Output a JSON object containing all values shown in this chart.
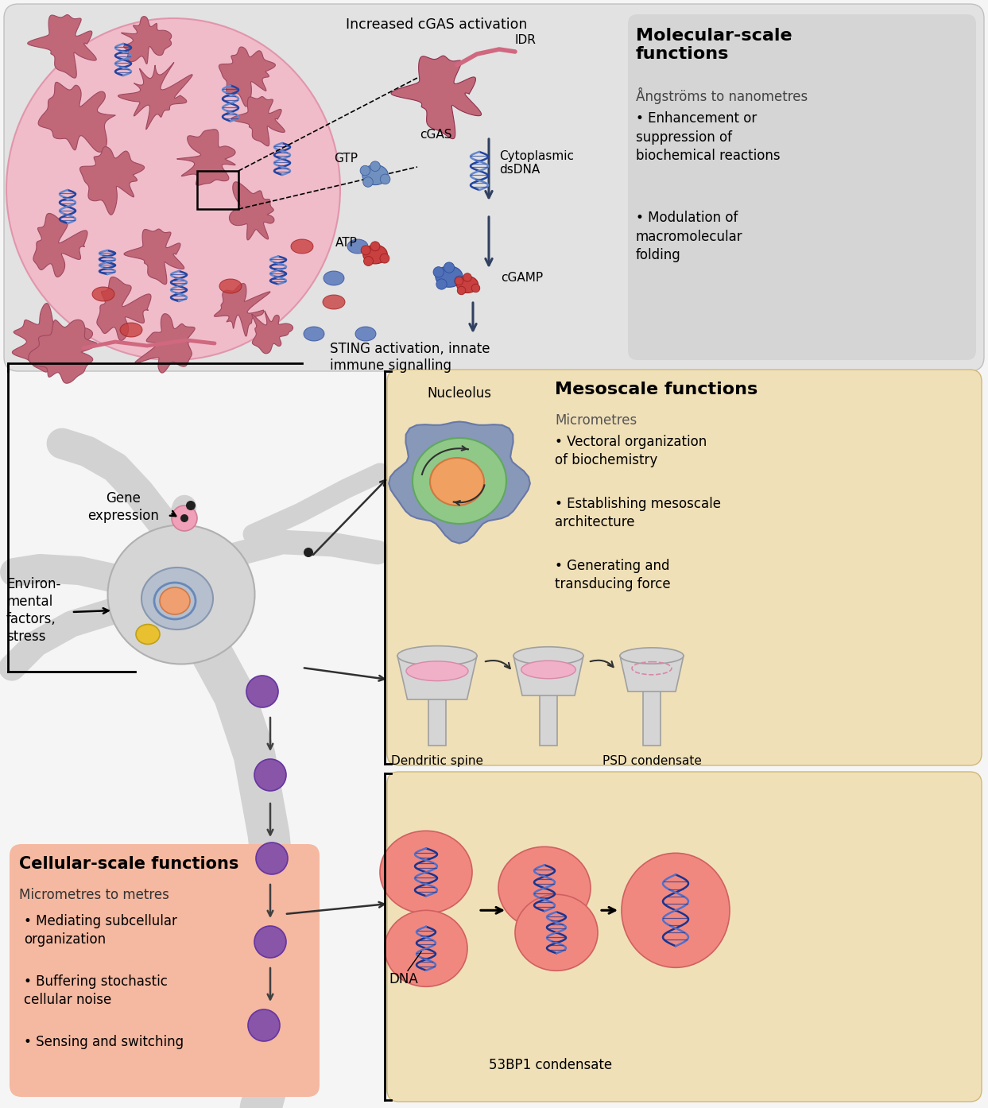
{
  "bg_color": "#f5f5f5",
  "panel_top_bg": "#e2e2e2",
  "panel_meso_bg": "#f0e0b8",
  "panel_cellular_bg": "#f5b8a0",
  "molecular_title": "Molecular-scale\nfunctions",
  "molecular_subtitle": "Ångströms to nanometres",
  "molecular_bullets": [
    "Enhancement or\nsuppression of\nbiochemical reactions",
    "Modulation of\nmacromolecular\nfolding"
  ],
  "meso_title": "Mesoscale functions",
  "meso_subtitle": "Micrometres",
  "meso_bullets": [
    "Vectoral organization\nof biochemistry",
    "Establishing mesoscale\narchitecture",
    "Generating and\ntransducing force"
  ],
  "cellular_title": "Cellular-scale functions",
  "cellular_subtitle": "Micrometres to metres",
  "cellular_bullets": [
    "Mediating subcellular\norganization",
    "Buffering stochastic\ncellular noise",
    "Sensing and switching"
  ],
  "lbl_increased": "Increased cGAS activation",
  "lbl_idr": "IDR",
  "lbl_cgas": "cGAS",
  "lbl_gtp": "GTP",
  "lbl_cytoplasmic": "Cytoplasmic\ndsDNA",
  "lbl_atp": "ATP",
  "lbl_cgamp": "cGAMP",
  "lbl_sting": "STING activation, innate\nimmune signalling",
  "lbl_gene": "Gene\nexpression",
  "lbl_env": "Environ-\nmental\nfactors,\nstress",
  "lbl_nucleolus": "Nucleolus",
  "lbl_dendritic": "Dendritic spine",
  "lbl_psd": "PSD condensate",
  "lbl_dna": "DNA",
  "lbl_53bp1": "53BP1 condensate"
}
